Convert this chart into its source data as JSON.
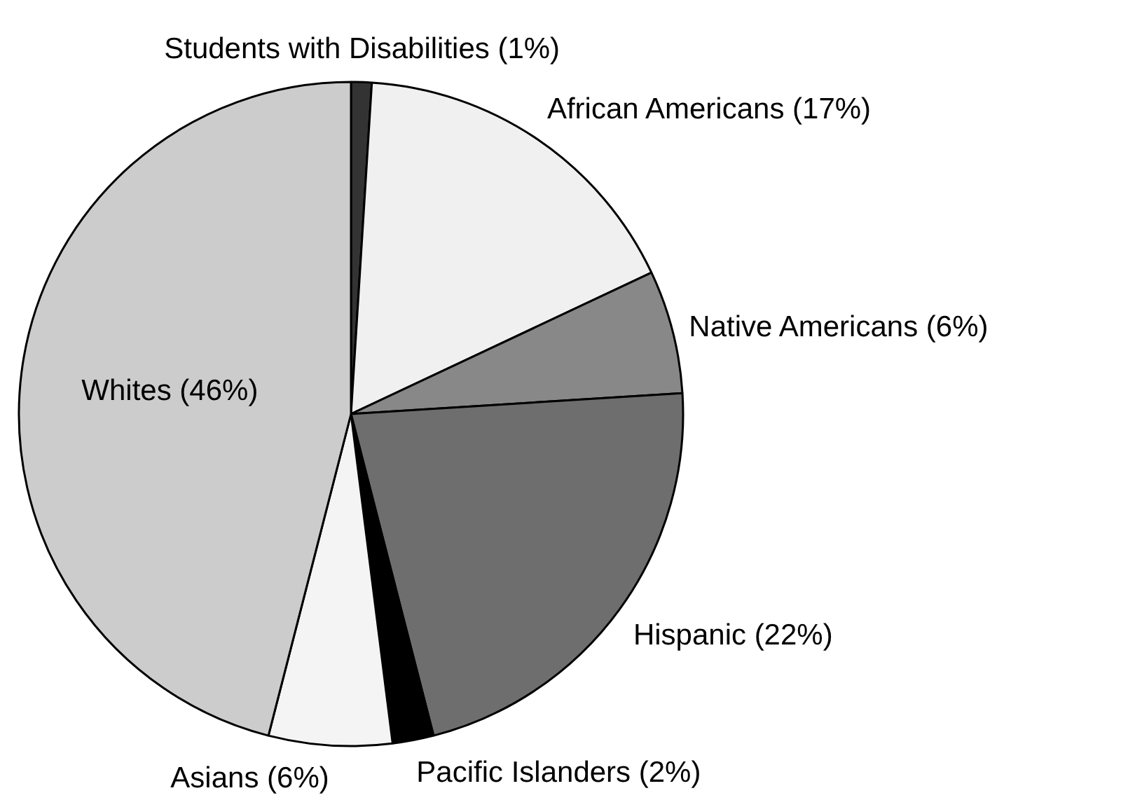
{
  "chart_data": {
    "type": "pie",
    "categories": [
      "Students with Disabilities (1%)",
      "African Americans (17%)",
      "Native Americans (6%)",
      "Hispanic (22%)",
      "Pacific Islanders (2%)",
      "Asians (6%)",
      "Whites (46%)"
    ],
    "values": [
      1,
      17,
      6,
      22,
      2,
      6,
      46
    ],
    "colors": [
      "#333333",
      "#f0f0f0",
      "#888888",
      "#6e6e6e",
      "#000000",
      "#f4f4f4",
      "#cccccc"
    ]
  }
}
